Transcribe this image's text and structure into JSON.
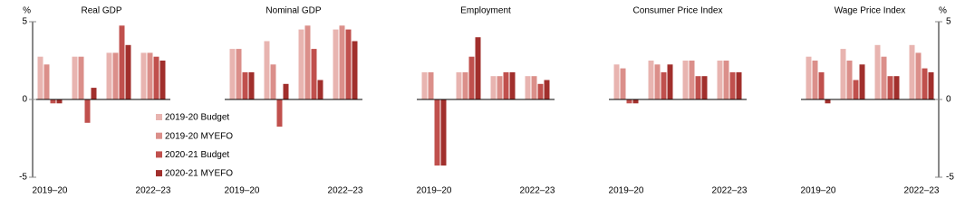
{
  "chart_data": [
    {
      "type": "bar",
      "title": "Real GDP",
      "ylabel": "%",
      "axis_side": "left",
      "categories": [
        "2019–20",
        null,
        null,
        "2022–23"
      ],
      "ylim": [
        -5,
        5
      ],
      "yticks": [
        -5,
        0,
        5
      ],
      "series": [
        {
          "name": "2019-20 Budget",
          "color": "#e8b4b0",
          "values": [
            2.75,
            2.75,
            3.0,
            3.0
          ]
        },
        {
          "name": "2019-20 MYEFO",
          "color": "#db8f8a",
          "values": [
            2.25,
            2.75,
            3.0,
            3.0
          ]
        },
        {
          "name": "2020-21 Budget",
          "color": "#c0504d",
          "values": [
            -0.25,
            -1.5,
            4.75,
            2.75
          ]
        },
        {
          "name": "2020-21 MYEFO",
          "color": "#a12f2c",
          "values": [
            -0.25,
            0.75,
            3.5,
            2.5
          ]
        }
      ]
    },
    {
      "type": "bar",
      "title": "Nominal GDP",
      "categories": [
        "2019–20",
        null,
        null,
        "2022–23"
      ],
      "ylim": [
        -5,
        5
      ],
      "series": [
        {
          "color": "#e8b4b0",
          "values": [
            3.25,
            3.75,
            4.5,
            4.5
          ]
        },
        {
          "color": "#db8f8a",
          "values": [
            3.25,
            2.25,
            4.75,
            4.75
          ]
        },
        {
          "color": "#c0504d",
          "values": [
            1.75,
            -1.75,
            3.25,
            4.5
          ]
        },
        {
          "color": "#a12f2c",
          "values": [
            1.75,
            1.0,
            1.25,
            3.75
          ]
        }
      ]
    },
    {
      "type": "bar",
      "title": "Employment",
      "categories": [
        "2019–20",
        null,
        null,
        "2022–23"
      ],
      "ylim": [
        -5,
        5
      ],
      "series": [
        {
          "color": "#e8b4b0",
          "values": [
            1.75,
            1.75,
            1.5,
            1.5
          ]
        },
        {
          "color": "#db8f8a",
          "values": [
            1.75,
            1.75,
            1.5,
            1.5
          ]
        },
        {
          "color": "#c0504d",
          "values": [
            -4.25,
            2.75,
            1.75,
            1.0
          ]
        },
        {
          "color": "#a12f2c",
          "values": [
            -4.25,
            4.0,
            1.75,
            1.25
          ]
        }
      ]
    },
    {
      "type": "bar",
      "title": "Consumer Price Index",
      "categories": [
        "2019–20",
        null,
        null,
        "2022–23"
      ],
      "ylim": [
        -5,
        5
      ],
      "series": [
        {
          "color": "#e8b4b0",
          "values": [
            2.25,
            2.5,
            2.5,
            2.5
          ]
        },
        {
          "color": "#db8f8a",
          "values": [
            2.0,
            2.25,
            2.5,
            2.5
          ]
        },
        {
          "color": "#c0504d",
          "values": [
            -0.25,
            1.75,
            1.5,
            1.75
          ]
        },
        {
          "color": "#a12f2c",
          "values": [
            -0.25,
            2.25,
            1.5,
            1.75
          ]
        }
      ]
    },
    {
      "type": "bar",
      "title": "Wage Price Index",
      "ylabel": "%",
      "axis_side": "right",
      "categories": [
        "2019–20",
        null,
        null,
        "2022–23"
      ],
      "ylim": [
        -5,
        5
      ],
      "yticks": [
        -5,
        0,
        5
      ],
      "series": [
        {
          "color": "#e8b4b0",
          "values": [
            2.75,
            3.25,
            3.5,
            3.5
          ]
        },
        {
          "color": "#db8f8a",
          "values": [
            2.5,
            2.5,
            2.75,
            3.0
          ]
        },
        {
          "color": "#c0504d",
          "values": [
            1.75,
            1.25,
            1.5,
            2.0
          ]
        },
        {
          "color": "#a12f2c",
          "values": [
            -0.25,
            2.25,
            1.5,
            1.75
          ]
        }
      ]
    }
  ]
}
